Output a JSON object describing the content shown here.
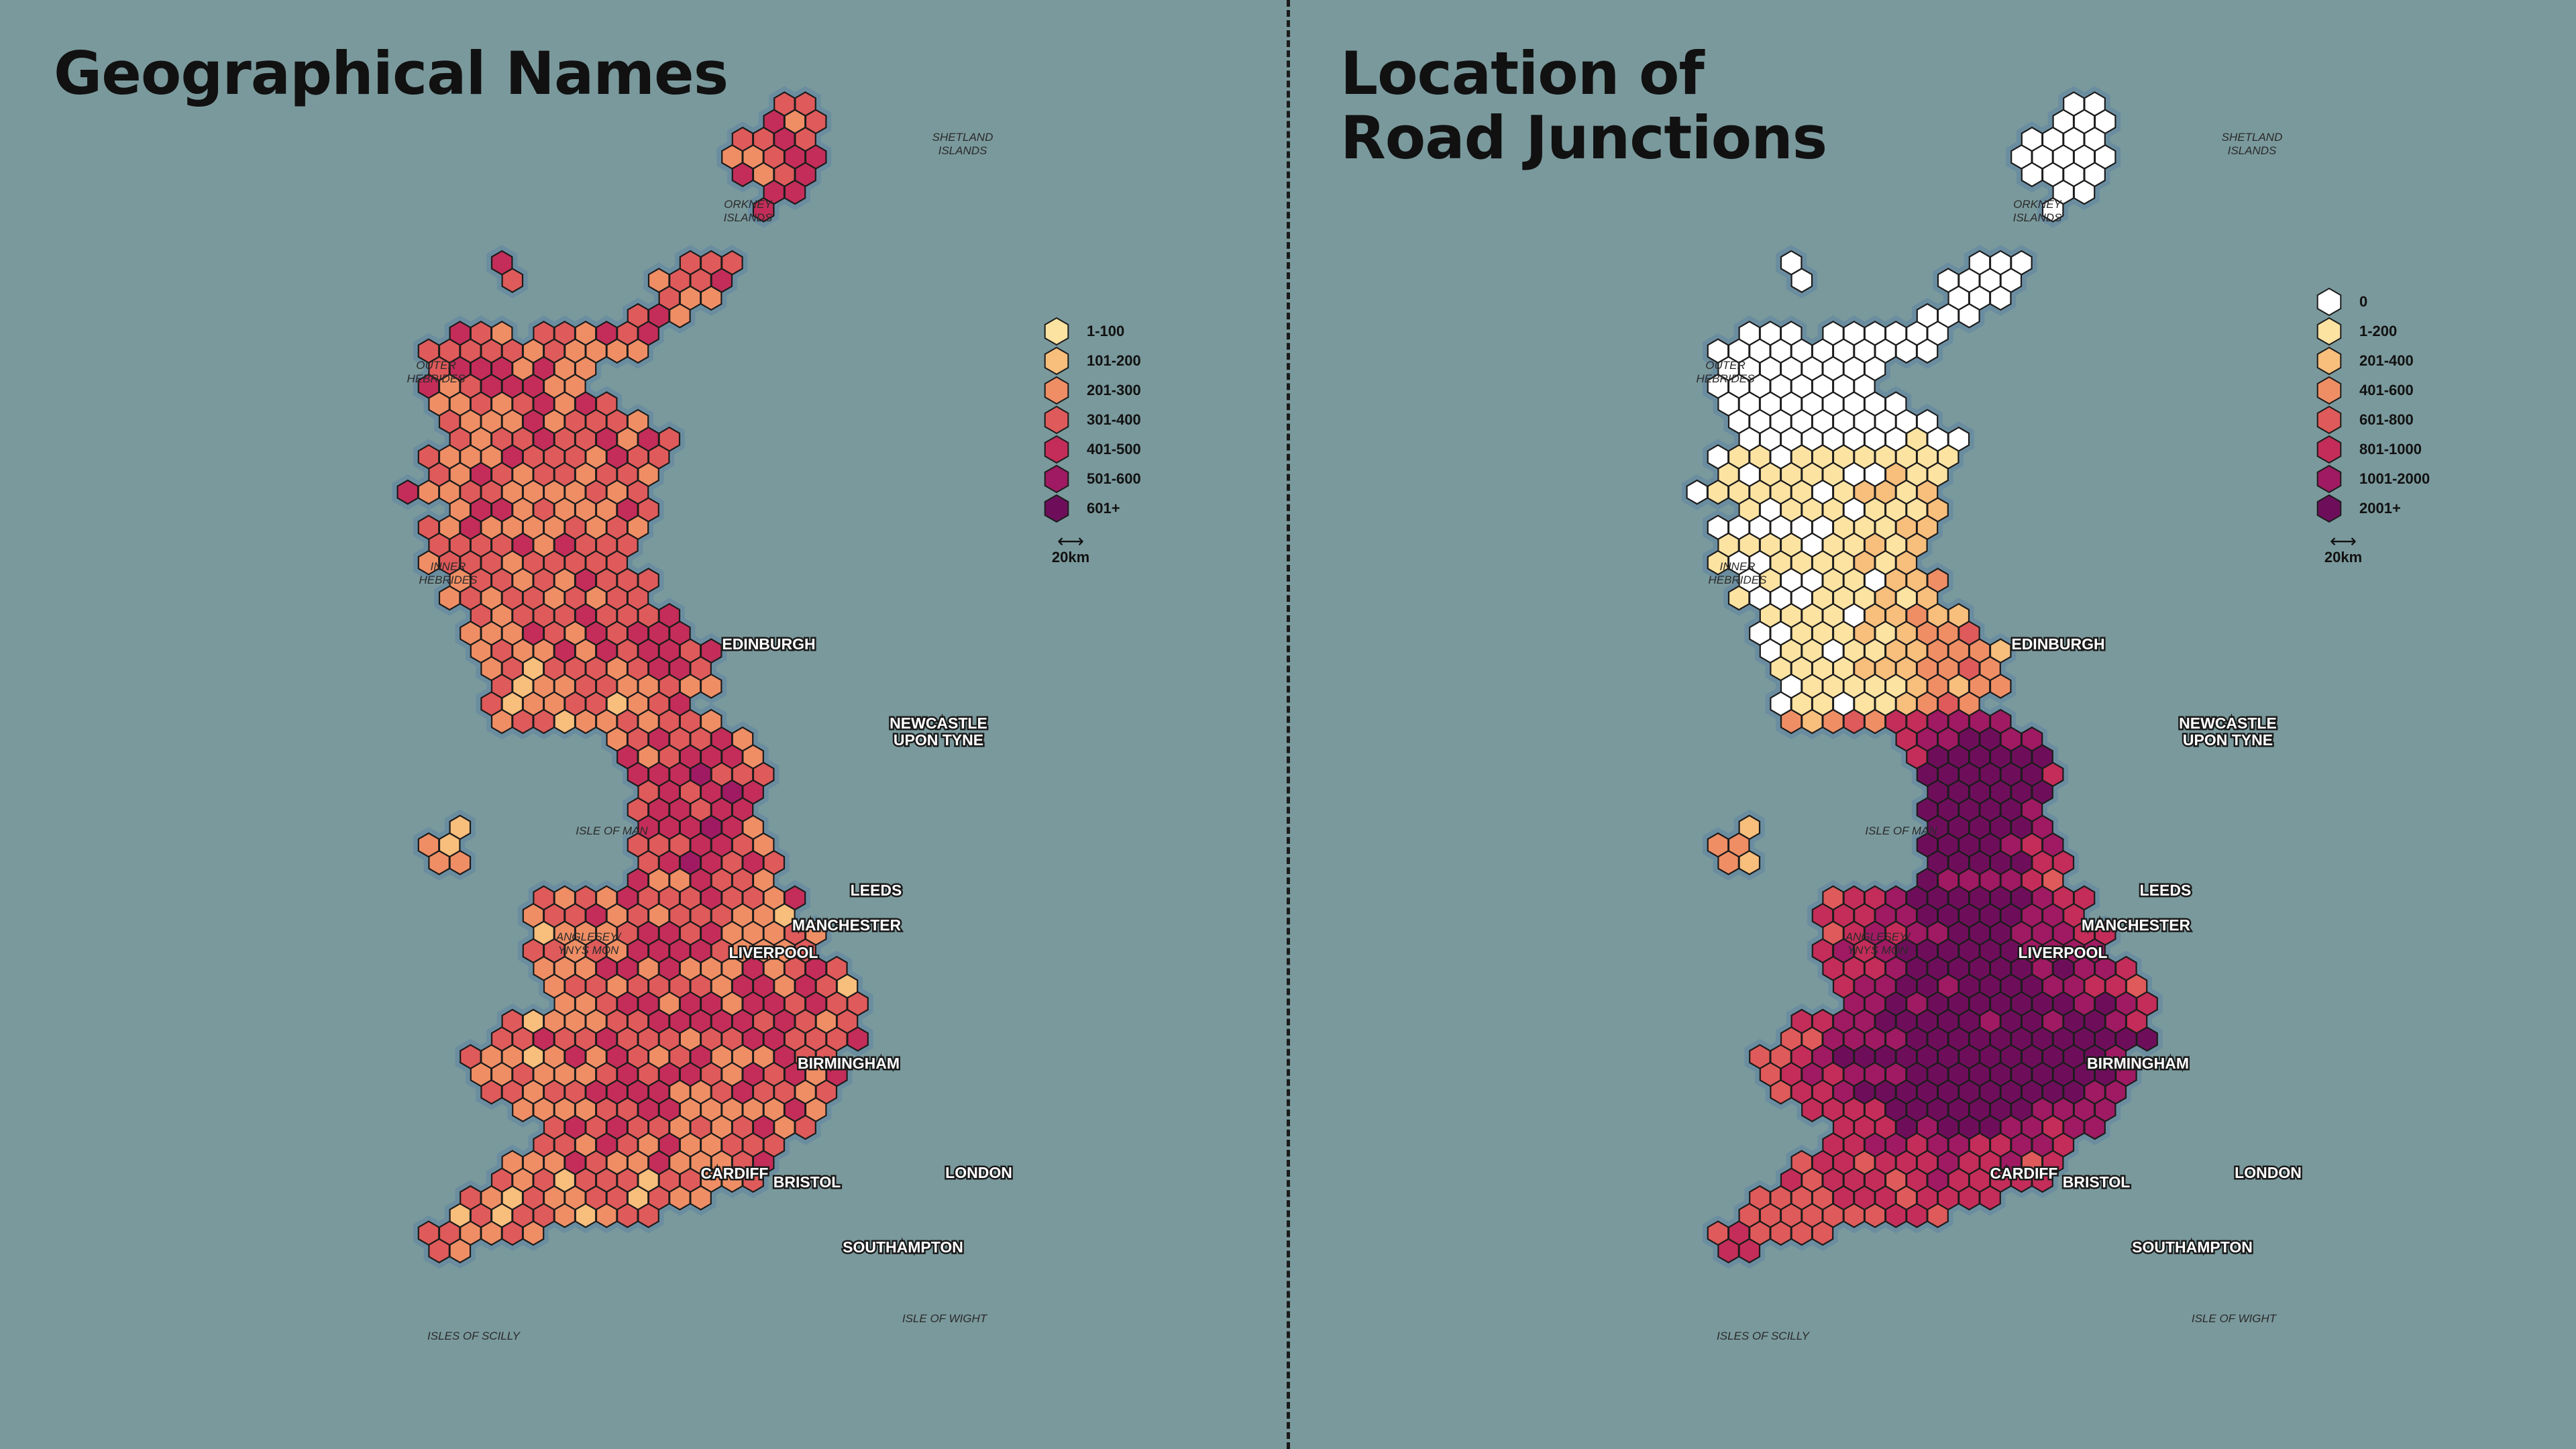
{
  "panels": [
    {
      "id": "names",
      "title_lines": [
        "Geographical Names"
      ],
      "legend": [
        {
          "label": "1-100",
          "color": "#fde3a2"
        },
        {
          "label": "101-200",
          "color": "#f7be7c"
        },
        {
          "label": "201-300",
          "color": "#ef8e65"
        },
        {
          "label": "301-400",
          "color": "#df5a5a"
        },
        {
          "label": "401-500",
          "color": "#c42d59"
        },
        {
          "label": "501-600",
          "color": "#9f1a62"
        },
        {
          "label": "601+",
          "color": "#6e0e5b"
        }
      ],
      "scale_label": "20km",
      "cities": [
        "EDINBURGH",
        "NEWCASTLE UPON TYNE",
        "LEEDS",
        "MANCHESTER",
        "LIVERPOOL",
        "BIRMINGHAM",
        "CARDIFF",
        "BRISTOL",
        "LONDON",
        "SOUTHAMPTON"
      ],
      "islands": [
        "SHETLAND ISLANDS",
        "ORKNEY ISLANDS",
        "OUTER HEBRIDES",
        "INNER HEBRIDES",
        "ISLE OF MAN",
        "ANGLESEY/ YNYS MÔN",
        "ISLES OF SCILLY",
        "ISLE OF WIGHT"
      ]
    },
    {
      "id": "junctions",
      "title_lines": [
        "Location of",
        "Road Junctions"
      ],
      "legend": [
        {
          "label": "0",
          "color": "#ffffff"
        },
        {
          "label": "1-200",
          "color": "#fde3a2"
        },
        {
          "label": "201-400",
          "color": "#f7be7c"
        },
        {
          "label": "401-600",
          "color": "#ef8e65"
        },
        {
          "label": "601-800",
          "color": "#df5a5a"
        },
        {
          "label": "801-1000",
          "color": "#c42d59"
        },
        {
          "label": "1001-2000",
          "color": "#9f1a62"
        },
        {
          "label": "2001+",
          "color": "#6e0e5b"
        }
      ],
      "scale_label": "20km",
      "cities": [
        "EDINBURGH",
        "NEWCASTLE UPON TYNE",
        "LEEDS",
        "MANCHESTER",
        "LIVERPOOL",
        "BIRMINGHAM",
        "CARDIFF",
        "BRISTOL",
        "LONDON",
        "SOUTHAMPTON"
      ],
      "islands": [
        "SHETLAND ISLANDS",
        "ORKNEY ISLANDS",
        "OUTER HEBRIDES",
        "INNER HEBRIDES",
        "ISLE OF MAN",
        "ANGLESEY/ YNYS MÔN",
        "ISLES OF SCILLY",
        "ISLE OF WIGHT"
      ]
    }
  ],
  "colors": {
    "background": "#7a999c",
    "halo": "#6a8da0",
    "hex_stroke": "#1c1c1c"
  }
}
